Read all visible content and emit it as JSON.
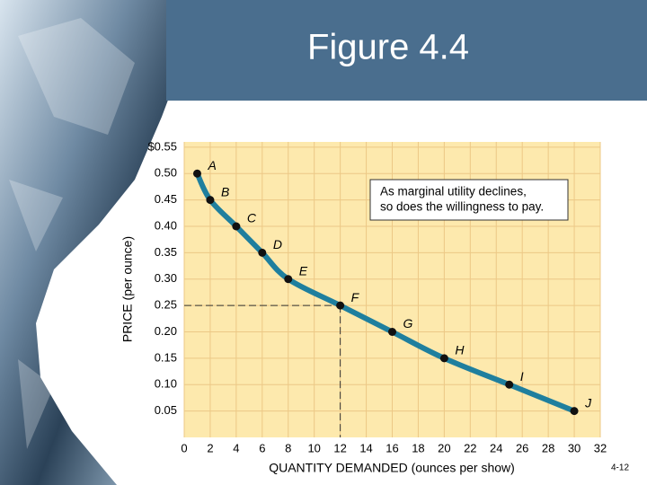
{
  "chart_data": {
    "type": "line",
    "title": "Figure 4.4",
    "x_label": "QUANTITY DEMANDED (ounces per show)",
    "y_label": "PRICE (per ounce)",
    "x": [
      1,
      2,
      4,
      6,
      8,
      12,
      16,
      20,
      25,
      30
    ],
    "values": [
      0.5,
      0.45,
      0.4,
      0.35,
      0.3,
      0.25,
      0.2,
      0.15,
      0.1,
      0.05
    ],
    "point_labels": [
      "A",
      "B",
      "C",
      "D",
      "E",
      "F",
      "G",
      "H",
      "I",
      "J"
    ],
    "color": "#1f7f9e",
    "xlim": [
      0,
      32
    ],
    "ylim": [
      0,
      0.56
    ],
    "xticks": [
      0,
      2,
      4,
      6,
      8,
      10,
      12,
      14,
      16,
      18,
      20,
      22,
      24,
      26,
      28,
      30,
      32
    ],
    "yticks": [
      0.05,
      {
        "value": 0.1,
        "label": "0.10"
      },
      0.15,
      {
        "value": 0.2,
        "label": "0.20"
      },
      0.25,
      {
        "value": 0.3,
        "label": "0.30"
      },
      0.35,
      {
        "value": 0.4,
        "label": "0.40"
      },
      0.45,
      {
        "value": 0.5,
        "label": "0.50"
      },
      {
        "value": 0.55,
        "label": "$0.55"
      }
    ],
    "grid": true,
    "annotation": [
      "As marginal utility declines,",
      "so does the willingness to pay."
    ]
  },
  "page_number": "4-12"
}
